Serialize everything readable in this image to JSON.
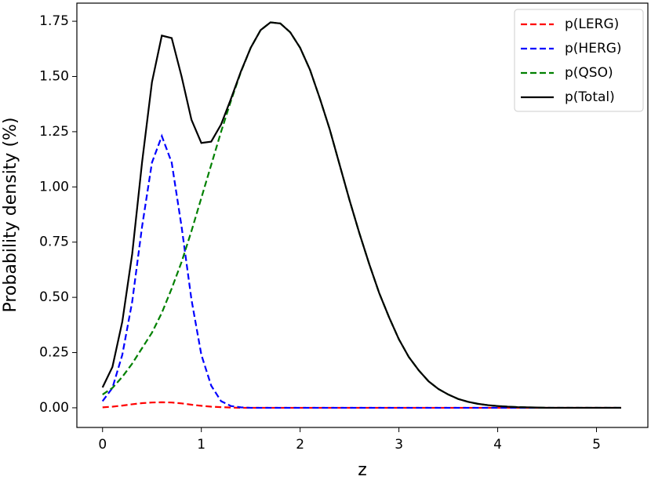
{
  "chart_data": {
    "type": "line",
    "x_label": "z",
    "y_label": "Probability density (%)",
    "x": [
      0,
      0.1,
      0.2,
      0.3,
      0.4,
      0.5,
      0.6,
      0.7,
      0.8,
      0.9,
      1,
      1.1,
      1.2,
      1.3,
      1.4,
      1.5,
      1.6,
      1.7,
      1.8,
      1.9,
      2,
      2.1,
      2.2,
      2.3,
      2.4,
      2.5,
      2.6,
      2.7,
      2.8,
      2.9,
      3,
      3.1,
      3.2,
      3.3,
      3.4,
      3.5,
      3.6,
      3.7,
      3.8,
      3.9,
      4,
      4.1,
      4.2,
      4.3,
      4.4,
      4.5,
      4.6,
      4.7,
      4.8,
      4.9,
      5,
      5.1,
      5.2,
      5.25
    ],
    "series": [
      {
        "name": "p(LERG)",
        "color": "#ff0000",
        "linestyle": "dashed",
        "values": [
          0.002,
          0.005,
          0.01,
          0.016,
          0.021,
          0.024,
          0.025,
          0.024,
          0.02,
          0.014,
          0.009,
          0.005,
          0.003,
          0.001,
          0,
          0,
          0,
          0,
          0,
          0,
          0,
          0,
          0,
          0,
          0,
          0,
          0,
          0,
          0,
          0,
          0,
          0,
          0,
          0,
          0,
          0,
          0,
          0,
          0,
          0,
          0,
          0,
          0,
          0,
          0,
          0,
          0,
          0,
          0,
          0,
          0,
          0,
          0,
          0
        ]
      },
      {
        "name": "p(HERG)",
        "color": "#0000ff",
        "linestyle": "dashed",
        "values": [
          0.03,
          0.09,
          0.24,
          0.48,
          0.82,
          1.11,
          1.23,
          1.11,
          0.82,
          0.49,
          0.24,
          0.1,
          0.03,
          0.008,
          0.002,
          0,
          0,
          0,
          0,
          0,
          0,
          0,
          0,
          0,
          0,
          0,
          0,
          0,
          0,
          0,
          0,
          0,
          0,
          0,
          0,
          0,
          0,
          0,
          0,
          0,
          0,
          0,
          0,
          0,
          0,
          0,
          0,
          0,
          0,
          0,
          0,
          0,
          0,
          0
        ]
      },
      {
        "name": "p(QSO)",
        "color": "#008000",
        "linestyle": "dashed",
        "values": [
          0.06,
          0.09,
          0.14,
          0.2,
          0.27,
          0.34,
          0.43,
          0.54,
          0.66,
          0.8,
          0.95,
          1.1,
          1.25,
          1.39,
          1.52,
          1.63,
          1.71,
          1.745,
          1.74,
          1.7,
          1.63,
          1.53,
          1.4,
          1.26,
          1.1,
          0.94,
          0.79,
          0.65,
          0.52,
          0.41,
          0.31,
          0.23,
          0.17,
          0.12,
          0.085,
          0.06,
          0.04,
          0.027,
          0.018,
          0.012,
          0.008,
          0.005,
          0.003,
          0.002,
          0.001,
          0,
          0,
          0,
          0,
          0,
          0,
          0,
          0,
          0
        ]
      },
      {
        "name": "p(Total)",
        "color": "#000000",
        "linestyle": "solid",
        "values": [
          0.092,
          0.185,
          0.39,
          0.696,
          1.111,
          1.474,
          1.685,
          1.674,
          1.5,
          1.304,
          1.199,
          1.205,
          1.283,
          1.399,
          1.522,
          1.63,
          1.71,
          1.745,
          1.74,
          1.7,
          1.63,
          1.53,
          1.4,
          1.26,
          1.1,
          0.94,
          0.79,
          0.65,
          0.52,
          0.41,
          0.31,
          0.23,
          0.17,
          0.12,
          0.085,
          0.06,
          0.04,
          0.027,
          0.018,
          0.012,
          0.008,
          0.005,
          0.003,
          0.002,
          0.001,
          0,
          0,
          0,
          0,
          0,
          0,
          0,
          0,
          0
        ]
      }
    ],
    "xlim": [
      -0.26,
      5.52
    ],
    "ylim": [
      -0.089,
      1.832
    ],
    "xticks": [
      0,
      1,
      2,
      3,
      4,
      5
    ],
    "yticks": [
      {
        "value": 0,
        "label": "0.00"
      },
      {
        "value": 0.25,
        "label": "0.25"
      },
      {
        "value": 0.5,
        "label": "0.50"
      },
      {
        "value": 0.75,
        "label": "0.75"
      },
      {
        "value": 1,
        "label": "1.00"
      },
      {
        "value": 1.25,
        "label": "1.25"
      },
      {
        "value": 1.5,
        "label": "1.50"
      },
      {
        "value": 1.75,
        "label": "1.75"
      }
    ],
    "legend": "upper right"
  }
}
